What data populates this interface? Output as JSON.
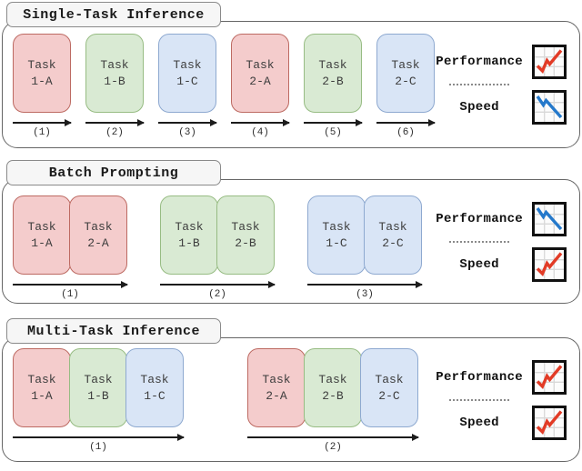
{
  "colors": {
    "panel_border": "#666666",
    "tab_fill": "#f6f6f6",
    "tab_border": "#8a8a8a",
    "task_red_fill": "#f4cccc",
    "task_red_border": "#bd6a62",
    "task_green_fill": "#d9ead3",
    "task_green_border": "#97bc83",
    "task_blue_fill": "#d9e5f6",
    "task_blue_border": "#8ea9d0",
    "rising_line": "#e23b26",
    "falling_line": "#2579cb",
    "icon_border": "#111111",
    "icon_grid": "#d8d8d8"
  },
  "panels": [
    {
      "title": "Single-Task Inference",
      "groups": [
        {
          "step": "(1)",
          "tasks": [
            {
              "line1": "Task",
              "line2": "1-A",
              "color": "red"
            }
          ]
        },
        {
          "step": "(2)",
          "tasks": [
            {
              "line1": "Task",
              "line2": "1-B",
              "color": "green"
            }
          ]
        },
        {
          "step": "(3)",
          "tasks": [
            {
              "line1": "Task",
              "line2": "1-C",
              "color": "blue"
            }
          ]
        },
        {
          "step": "(4)",
          "tasks": [
            {
              "line1": "Task",
              "line2": "2-A",
              "color": "red"
            }
          ]
        },
        {
          "step": "(5)",
          "tasks": [
            {
              "line1": "Task",
              "line2": "2-B",
              "color": "green"
            }
          ]
        },
        {
          "step": "(6)",
          "tasks": [
            {
              "line1": "Task",
              "line2": "2-C",
              "color": "blue"
            }
          ]
        }
      ],
      "metrics": {
        "performance_label": "Performance",
        "performance_trend": "rising",
        "performance_icon": "line-chart-rising-icon",
        "speed_label": "Speed",
        "speed_trend": "falling",
        "speed_icon": "line-chart-falling-icon"
      }
    },
    {
      "title": "Batch Prompting",
      "groups": [
        {
          "step": "(1)",
          "tasks": [
            {
              "line1": "Task",
              "line2": "1-A",
              "color": "red"
            },
            {
              "line1": "Task",
              "line2": "2-A",
              "color": "red"
            }
          ]
        },
        {
          "step": "(2)",
          "tasks": [
            {
              "line1": "Task",
              "line2": "1-B",
              "color": "green"
            },
            {
              "line1": "Task",
              "line2": "2-B",
              "color": "green"
            }
          ]
        },
        {
          "step": "(3)",
          "tasks": [
            {
              "line1": "Task",
              "line2": "1-C",
              "color": "blue"
            },
            {
              "line1": "Task",
              "line2": "2-C",
              "color": "blue"
            }
          ]
        }
      ],
      "metrics": {
        "performance_label": "Performance",
        "performance_trend": "falling",
        "performance_icon": "line-chart-falling-icon",
        "speed_label": "Speed",
        "speed_trend": "rising",
        "speed_icon": "line-chart-rising-icon"
      }
    },
    {
      "title": "Multi-Task Inference",
      "groups": [
        {
          "step": "(1)",
          "tasks": [
            {
              "line1": "Task",
              "line2": "1-A",
              "color": "red"
            },
            {
              "line1": "Task",
              "line2": "1-B",
              "color": "green"
            },
            {
              "line1": "Task",
              "line2": "1-C",
              "color": "blue"
            }
          ]
        },
        {
          "step": "(2)",
          "tasks": [
            {
              "line1": "Task",
              "line2": "2-A",
              "color": "red"
            },
            {
              "line1": "Task",
              "line2": "2-B",
              "color": "green"
            },
            {
              "line1": "Task",
              "line2": "2-C",
              "color": "blue"
            }
          ]
        }
      ],
      "metrics": {
        "performance_label": "Performance",
        "performance_trend": "rising",
        "performance_icon": "line-chart-rising-icon",
        "speed_label": "Speed",
        "speed_trend": "rising",
        "speed_icon": "line-chart-rising-icon"
      }
    }
  ]
}
